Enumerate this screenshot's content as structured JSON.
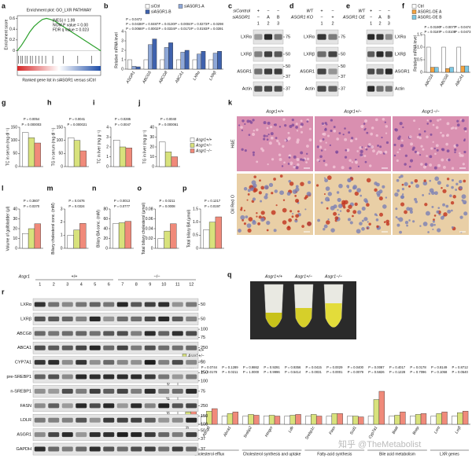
{
  "chart_data": [
    {
      "label": "a",
      "type": "gsea",
      "title": "Enrichment plot: GO_LXR PATHWAY",
      "stats": [
        "|NES| = 1.99",
        "NOM P value = 0.00",
        "FDR q value = 0.023"
      ],
      "ylabel": "Enrichment score",
      "xlabel": "Ranked gene list in siASGR1 versus siCtrl",
      "ylim": [
        -0.05,
        0.65
      ],
      "yticks": [
        0,
        0.2,
        0.4,
        0.6
      ],
      "values": [
        0,
        0.1,
        0.22,
        0.35,
        0.45,
        0.52,
        0.58,
        0.6,
        0.58,
        0.55,
        0.5,
        0.45,
        0.4,
        0.35,
        0.3,
        0.25,
        0.2,
        0.15,
        0.1,
        0.05,
        0
      ],
      "hits": [
        0.3,
        0.8,
        1.2,
        1.9,
        2.4,
        3.1,
        3.6,
        4.4,
        5.2,
        6.0,
        6.8,
        8.5,
        11.0,
        14.5,
        17.8
      ],
      "color": "#2ca02c"
    },
    {
      "label": "b",
      "type": "bar",
      "ylabel": "Relative mRNA level",
      "categories": [
        "ASGR1",
        "ABCG5",
        "ABCG8",
        "ABCA1",
        "LXRα",
        "LXRβ"
      ],
      "series": [
        {
          "name": "siCtrl",
          "color": "#ffffff",
          "values": [
            1,
            1,
            1,
            1,
            1,
            1
          ]
        },
        {
          "name": "siASGR1-A",
          "color": "#8fa8d8",
          "values": [
            0.3,
            2.6,
            2.3,
            1.8,
            1.6,
            1.7
          ]
        },
        {
          "name": "siASGR1-B",
          "color": "#3f62ad",
          "values": [
            0.25,
            3.2,
            2.8,
            2.0,
            1.9,
            1.9
          ]
        }
      ],
      "ylim": [
        0,
        4
      ],
      "yticks": [
        0,
        1,
        2,
        3,
        4
      ],
      "annotations": [
        "P = 0.0068",
        "P = 0.0002",
        "P = 0.0334",
        "P = 0.0173",
        "P = 0.0193",
        "P = 0.0391",
        "P = 0.0438",
        "P = 0.0487",
        "P = 0.0130",
        "P = 0.0004",
        "P = 0.0273",
        "P = 0.0298",
        "P = 0.0472"
      ]
    },
    {
      "label": "f",
      "type": "bar",
      "ylabel": "Relative mRNA level",
      "categories": [
        "ABCG5",
        "ABCG8",
        "ABCA1"
      ],
      "series": [
        {
          "name": "Ctrl",
          "color": "#ffffff",
          "values": [
            1,
            1,
            1
          ]
        },
        {
          "name": "ASGR1-OE A",
          "color": "#f4a340",
          "values": [
            0.2,
            0.15,
            0.25
          ]
        },
        {
          "name": "ASGR1-OE B",
          "color": "#7ec8e3",
          "values": [
            0.2,
            0.2,
            0.25
          ]
        }
      ],
      "ylim": [
        0,
        1.5
      ],
      "yticks": [
        0,
        0.5,
        {
          "value": 1,
          "label": "1.0"
        },
        1.5
      ],
      "annotations": [
        "P = 0.0187",
        "P = 0.0109",
        "P = 0.0473",
        "P = 0.0190",
        "P = 0.0077",
        "P = 0.0474"
      ]
    },
    {
      "label": "g",
      "type": "bar",
      "ylabel": "TC in serum (mg dl⁻¹)",
      "categories": [
        null
      ],
      "series": [
        {
          "color": "#ffffff",
          "values": [
            130
          ]
        },
        {
          "color": "#d8e27c",
          "values": [
            110
          ]
        },
        {
          "color": "#f08a7a",
          "values": [
            90
          ]
        }
      ],
      "ylim": [
        0,
        150
      ],
      "yticks": [
        0,
        50,
        100,
        150
      ],
      "annotations": [
        "P = 0.000003",
        "P = 0.0054"
      ]
    },
    {
      "label": "h",
      "type": "bar",
      "ylabel": "TG in serum (mg dl⁻¹)",
      "categories": [
        null
      ],
      "series": [
        {
          "color": "#ffffff",
          "values": [
            110
          ]
        },
        {
          "color": "#d8e27c",
          "values": [
            100
          ]
        },
        {
          "color": "#f08a7a",
          "values": [
            60
          ]
        }
      ],
      "ylim": [
        0,
        150
      ],
      "yticks": [
        0,
        50,
        100,
        150
      ],
      "annotations": [
        "P = 0.000021",
        "P = 0.0041"
      ]
    },
    {
      "label": "i",
      "type": "bar",
      "ylabel": "TC in liver (mg g⁻¹)",
      "categories": [
        null
      ],
      "series": [
        {
          "color": "#ffffff",
          "values": [
            2.7
          ]
        },
        {
          "color": "#d8e27c",
          "values": [
            2.0
          ]
        },
        {
          "color": "#f08a7a",
          "values": [
            1.9
          ]
        }
      ],
      "ylim": [
        0,
        4
      ],
      "yticks": [
        0,
        1,
        2,
        3,
        4
      ],
      "annotations": [
        "P = 0.0047",
        "P = 0.0285"
      ]
    },
    {
      "label": "j",
      "type": "bar",
      "ylabel": "TG in liver (mg g⁻¹)",
      "categories": [
        null
      ],
      "series": [
        {
          "name": "Asgr1+/+",
          "color": "#ffffff",
          "values": [
            25
          ]
        },
        {
          "name": "Asgr1+/−",
          "color": "#d8e27c",
          "values": [
            15
          ]
        },
        {
          "name": "Asgr1−/−",
          "color": "#f08a7a",
          "values": [
            10
          ]
        }
      ],
      "ylim": [
        0,
        40
      ],
      "yticks": [
        0,
        10,
        20,
        30,
        40
      ],
      "annotations": [
        "P = 0.000061",
        "P = 0.0040"
      ]
    },
    {
      "label": "l",
      "type": "bar",
      "ylabel": "Volume of gallbladder (μl)",
      "categories": [
        null
      ],
      "series": [
        {
          "color": "#ffffff",
          "values": [
            15
          ]
        },
        {
          "color": "#d8e27c",
          "values": [
            20
          ]
        },
        {
          "color": "#f08a7a",
          "values": [
            25
          ]
        }
      ],
      "ylim": [
        0,
        40
      ],
      "yticks": [
        0,
        10,
        20,
        30,
        40
      ],
      "annotations": [
        "P = 0.0370",
        "P = 0.3607"
      ]
    },
    {
      "label": "m",
      "type": "bar",
      "ylabel": "Biliary cholesterol conc. (mM)",
      "categories": [
        null
      ],
      "series": [
        {
          "color": "#ffffff",
          "values": [
            1.0
          ]
        },
        {
          "color": "#d8e27c",
          "values": [
            1.4
          ]
        },
        {
          "color": "#f08a7a",
          "values": [
            1.9
          ]
        }
      ],
      "ylim": [
        0,
        3
      ],
      "yticks": [
        0,
        1,
        2,
        3
      ],
      "annotations": [
        "P = 0.0324",
        "P = 0.0476"
      ]
    },
    {
      "label": "n",
      "type": "bar",
      "ylabel": "Biliary BA conc. (mM)",
      "categories": [
        null
      ],
      "series": [
        {
          "color": "#ffffff",
          "values": [
            50
          ]
        },
        {
          "color": "#d8e27c",
          "values": [
            52
          ]
        },
        {
          "color": "#f08a7a",
          "values": [
            55
          ]
        }
      ],
      "ylim": [
        0,
        80
      ],
      "yticks": [
        0,
        20,
        40,
        60,
        80
      ],
      "annotations": [
        "P = 0.0777",
        "P = 0.0013"
      ]
    },
    {
      "label": "o",
      "type": "bar",
      "ylabel": "Total biliary cholesterol (μmol)",
      "categories": [
        null
      ],
      "series": [
        {
          "color": "#ffffff",
          "values": [
            0.02
          ]
        },
        {
          "color": "#d8e27c",
          "values": [
            0.035
          ]
        },
        {
          "color": "#f08a7a",
          "values": [
            0.05
          ]
        }
      ],
      "ylim": [
        0,
        0.08
      ],
      "yticks": [
        0,
        0.02,
        0.04,
        0.06,
        0.08
      ],
      "annotations": [
        "P = 0.0008",
        "P = 0.0211"
      ]
    },
    {
      "label": "p",
      "type": "bar",
      "ylabel": "Total biliary BA (μmol)",
      "categories": [
        null
      ],
      "series": [
        {
          "color": "#ffffff",
          "values": [
            0.7
          ]
        },
        {
          "color": "#d8e27c",
          "values": [
            1.0
          ]
        },
        {
          "color": "#f08a7a",
          "values": [
            1.2
          ]
        }
      ],
      "ylim": [
        0,
        1.5
      ],
      "yticks": [
        0,
        0.5,
        {
          "value": 1,
          "label": "1.0"
        },
        1.5
      ],
      "annotations": [
        "P = 0.0197",
        "P = 0.1217"
      ]
    },
    {
      "label": "s",
      "type": "bar",
      "ylabel": "Relative mRNA level",
      "category_groups": [
        {
          "label": "Cholesterol efflux",
          "categories": [
            "Abcg5",
            "Abcg8",
            "Abca1"
          ]
        },
        {
          "label": "Cholesterol synthesis and uptake",
          "categories": [
            "Srebp2",
            "Hmgcr",
            "Ldlr"
          ]
        },
        {
          "label": "Fatty-acid synthesis",
          "categories": [
            "Srebp1c",
            "Fasn",
            "Scd1"
          ]
        },
        {
          "label": "Bile acid metabolism",
          "categories": [
            "Cyp7a1",
            "Baat",
            "Bsep"
          ]
        },
        {
          "label": "LXR genes",
          "categories": [
            "Lxrα",
            "Lxrβ"
          ]
        }
      ],
      "series": [
        {
          "name": "Asgr1+/+",
          "color": "#ffffff",
          "values": [
            1,
            1,
            1,
            1,
            1,
            1,
            1,
            1,
            1,
            1,
            1,
            1,
            1,
            1
          ]
        },
        {
          "name": "Asgr1+/−",
          "color": "#d8e27c",
          "values": [
            1.5,
            1.6,
            1.3,
            1.2,
            1.1,
            1.1,
            1.2,
            1.3,
            1.0,
            3.0,
            1.1,
            1.2,
            1.3,
            1.4
          ]
        },
        {
          "name": "Asgr1−/−",
          "color": "#f08a7a",
          "values": [
            1.8,
            1.9,
            1.5,
            1.1,
            1.0,
            1.2,
            1.0,
            1.3,
            0.9,
            4.0,
            1.5,
            1.3,
            1.5,
            1.6
          ]
        }
      ],
      "ylim": [
        0,
        6
      ],
      "yticks": [
        0,
        2,
        4,
        6
      ],
      "annotations": [
        "P = 0.0068",
        "P = 0.0178",
        "P = 0.0211",
        "P = 1.0000",
        "P = 0.9996",
        "P = 0.5414",
        "P = 0.0031",
        "P = 0.0001",
        "P = 0.0079",
        "P = 0.5826",
        "P = 0.1228",
        "P = 0.7096",
        "P = 0.1058",
        "P = 0.0540",
        "P = 0.1334",
        "P = 0.0744",
        "P = 0.1289",
        "P = 0.9862",
        "P = 0.9291",
        "P = 0.9356",
        "P = 0.0415",
        "P = 0.0029",
        "P = 0.0400",
        "P = 0.0087",
        "P = 0.4017",
        "P = 0.0178",
        "P = 0.8149",
        "P = 0.8712"
      ]
    }
  ],
  "blots": [
    {
      "label": "c",
      "header": [
        {
          "label": "siControl",
          "lanes": [
            "+",
            "−",
            "−"
          ]
        },
        {
          "label": "siASGR1",
          "lanes": [
            "−",
            "A",
            "B"
          ]
        }
      ],
      "lanes": [
        1,
        2,
        3
      ],
      "bands": [
        {
          "name": "LXRα",
          "markers": [
            75
          ]
        },
        {
          "name": "LXRβ",
          "markers": [
            50
          ]
        },
        {
          "name": "ASGR1",
          "markers": [
            50,
            37
          ]
        },
        {
          "name": "Actin",
          "markers": [
            37
          ]
        }
      ]
    },
    {
      "label": "d",
      "header": [
        {
          "label": "WT",
          "lanes": [
            "+",
            "−"
          ]
        },
        {
          "label": "ASGR1 KO",
          "lanes": [
            "−",
            "+"
          ]
        }
      ],
      "lanes": [
        1,
        2
      ],
      "bands": [
        {
          "name": "LXRα",
          "markers": [
            75
          ]
        },
        {
          "name": "LXRβ",
          "markers": [
            50
          ]
        },
        {
          "name": "ASGR1",
          "markers": [
            50,
            37
          ]
        },
        {
          "name": "Actin",
          "markers": [
            37
          ]
        }
      ]
    },
    {
      "label": "e",
      "header": [
        {
          "label": "WT",
          "lanes": [
            "+",
            "−",
            "−"
          ]
        },
        {
          "label": "ASGR1 OE",
          "lanes": [
            "−",
            "A",
            "B"
          ]
        }
      ],
      "lanes": [
        1,
        2,
        3
      ],
      "bands": [
        {
          "name": "LXRα",
          "markers": []
        },
        {
          "name": "LXRβ",
          "markers": []
        },
        {
          "name": "ASGR1",
          "markers": []
        },
        {
          "name": "Actin",
          "markers": []
        }
      ]
    },
    {
      "label": "r",
      "header": [
        {
          "label": "Asgr1",
          "spans": [
            "+/+",
            "−/−"
          ]
        }
      ],
      "lanes": [
        1,
        2,
        3,
        4,
        5,
        6,
        7,
        8,
        9,
        10,
        11,
        12
      ],
      "bands": [
        {
          "name": "LXRα",
          "markers": [
            50
          ]
        },
        {
          "name": "LXRβ",
          "markers": [
            50
          ]
        },
        {
          "name": "ABCG8",
          "markers": [
            100,
            75
          ]
        },
        {
          "name": "ABCA1",
          "markers": [
            250
          ]
        },
        {
          "name": "CYP7A1",
          "markers": [
            50
          ]
        },
        {
          "name": "pre-SREBP1",
          "markers": [
            150,
            100
          ]
        },
        {
          "name": "n-SREBP1",
          "markers": [
            75
          ]
        },
        {
          "name": "FASN",
          "markers": [
            250
          ]
        },
        {
          "name": "LDLR",
          "markers": [
            150,
            100
          ]
        },
        {
          "name": "ASGR1",
          "markers": [
            50,
            37
          ]
        },
        {
          "name": "GAPDH",
          "markers": [
            37
          ]
        }
      ]
    }
  ],
  "histology": {
    "label": "k",
    "columns": [
      "Asgr1+/+",
      "Asgr1+/−",
      "Asgr1−/−"
    ],
    "rows": [
      "H&E",
      "Oil Red O"
    ]
  },
  "tubes": {
    "label": "q",
    "columns": [
      "Asgr1+/+",
      "Asgr1+/−",
      "Asgr1−/−"
    ]
  },
  "watermark": "知乎 @TheMetabolist"
}
